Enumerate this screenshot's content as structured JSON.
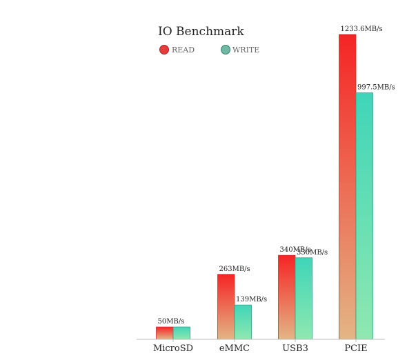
{
  "chart_data": {
    "type": "bar",
    "title": "IO Benchmark",
    "categories": [
      "MicroSD",
      "eMMC",
      "USB3",
      "PCIE"
    ],
    "series": [
      {
        "name": "READ",
        "values": [
          50,
          263,
          340,
          1233.6
        ],
        "labels": [
          "50MB/s",
          "263MB/s",
          "340MB/s",
          "1233.6MB/s"
        ],
        "color_top": "#f52424",
        "color_bottom": "#e3b585",
        "stroke": "#c83030"
      },
      {
        "name": "WRITE",
        "values": [
          50,
          139,
          330,
          997.5
        ],
        "labels": [
          "",
          "139MB/s",
          "330MB/s",
          "997.5MB/s"
        ],
        "color_top": "#3fd5b8",
        "color_bottom": "#8fe8b0",
        "stroke": "#3a9a86"
      }
    ],
    "legend": {
      "placement": "top-left",
      "items": [
        "READ",
        "WRITE"
      ]
    },
    "ylim": [
      0,
      1233.6
    ],
    "grid": false,
    "xlabel": "",
    "ylabel": ""
  }
}
